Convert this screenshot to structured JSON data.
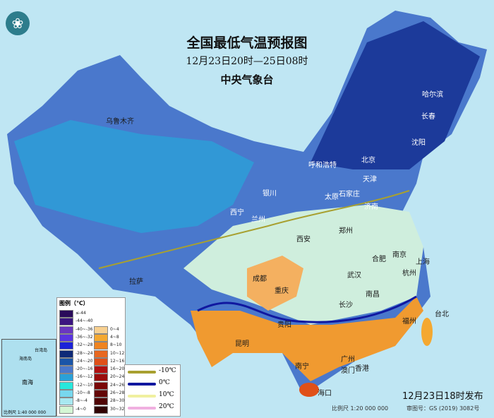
{
  "title": "全国最低气温预报图",
  "period": "12月23日20时—25日08时",
  "issuer": "中央气象台",
  "logo_icon": "cma-logo",
  "cities": [
    "乌鲁木齐",
    "哈尔滨",
    "长春",
    "沈阳",
    "呼和浩特",
    "北京",
    "天津",
    "石家庄",
    "太原",
    "济南",
    "银川",
    "西宁",
    "兰州",
    "郑州",
    "西安",
    "合肥",
    "南京",
    "上海",
    "杭州",
    "武汉",
    "成都",
    "重庆",
    "长沙",
    "南昌",
    "拉萨",
    "贵阳",
    "昆明",
    "福州",
    "台北",
    "南宁",
    "广州",
    "澳门",
    "香港",
    "海口"
  ],
  "legend": {
    "title": "图例（℃）",
    "cold": [
      {
        "label": "≤-44",
        "color": "#2a0a5a"
      },
      {
        "label": "-44~-40",
        "color": "#3b1480"
      },
      {
        "label": "-40~-36",
        "color": "#6a36c0"
      },
      {
        "label": "-36~-32",
        "color": "#5a34e0"
      },
      {
        "label": "-32~-28",
        "color": "#1c22d8"
      },
      {
        "label": "-28~-24",
        "color": "#0e2a78"
      },
      {
        "label": "-24~-20",
        "color": "#1a55a8"
      },
      {
        "label": "-20~-16",
        "color": "#4a78cc"
      },
      {
        "label": "-16~-12",
        "color": "#2aa0d8"
      },
      {
        "label": "-12~-10",
        "color": "#28e8dc"
      },
      {
        "label": "-10~-8",
        "color": "#78d8ee"
      },
      {
        "label": "-8~-4",
        "color": "#a8e8f0"
      },
      {
        "label": "-4~0",
        "color": "#d4f6d4"
      }
    ],
    "warm": [
      {
        "label": "0~4",
        "color": "#f8d090"
      },
      {
        "label": "4~8",
        "color": "#f4a830"
      },
      {
        "label": "8~10",
        "color": "#f08420"
      },
      {
        "label": "10~12",
        "color": "#e86820"
      },
      {
        "label": "12~16",
        "color": "#e05018"
      },
      {
        "label": "16~20",
        "color": "#b01010"
      },
      {
        "label": "20~24",
        "color": "#9a0c0c"
      },
      {
        "label": "24~26",
        "color": "#7a0808"
      },
      {
        "label": "26~28",
        "color": "#640606"
      },
      {
        "label": "28~30",
        "color": "#500404"
      },
      {
        "label": "30~32",
        "color": "#300202"
      }
    ],
    "isotherms": [
      {
        "label": "-10℃",
        "color": "#a8a030"
      },
      {
        "label": "0℃",
        "color": "#1018a0"
      },
      {
        "label": "10℃",
        "color": "#f0f0a0"
      },
      {
        "label": "20℃",
        "color": "#f0b0e0"
      }
    ]
  },
  "inset": {
    "labels": [
      "台湾岛",
      "海南岛",
      "南海",
      "比例尺 1:40 000 000"
    ]
  },
  "sea_labels": [
    "海",
    "南",
    "海",
    "海南岛"
  ],
  "issued": "12月23日18时发布",
  "scale": "比例尺 1:20 000 000",
  "map_number": "审图号：GS (2019) 3082号"
}
